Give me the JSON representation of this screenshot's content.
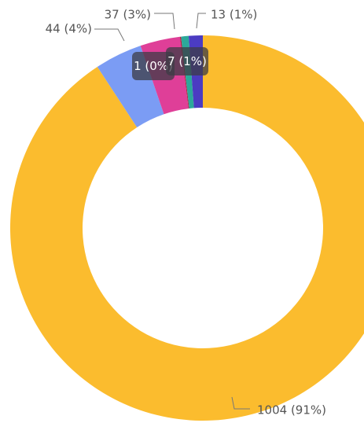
{
  "chart_data": {
    "type": "donut",
    "values": [
      1004,
      44,
      37,
      1,
      7,
      13
    ],
    "value_labels": [
      "1004 (91%)",
      "44 (4%)",
      "37 (3%)",
      "1 (0%)",
      "7 (1%)",
      "13 (1%)"
    ],
    "colors": [
      "#fbbc2e",
      "#7b9cf4",
      "#df3f98",
      "#b0203a",
      "#2ca99a",
      "#4b3cc2"
    ]
  }
}
